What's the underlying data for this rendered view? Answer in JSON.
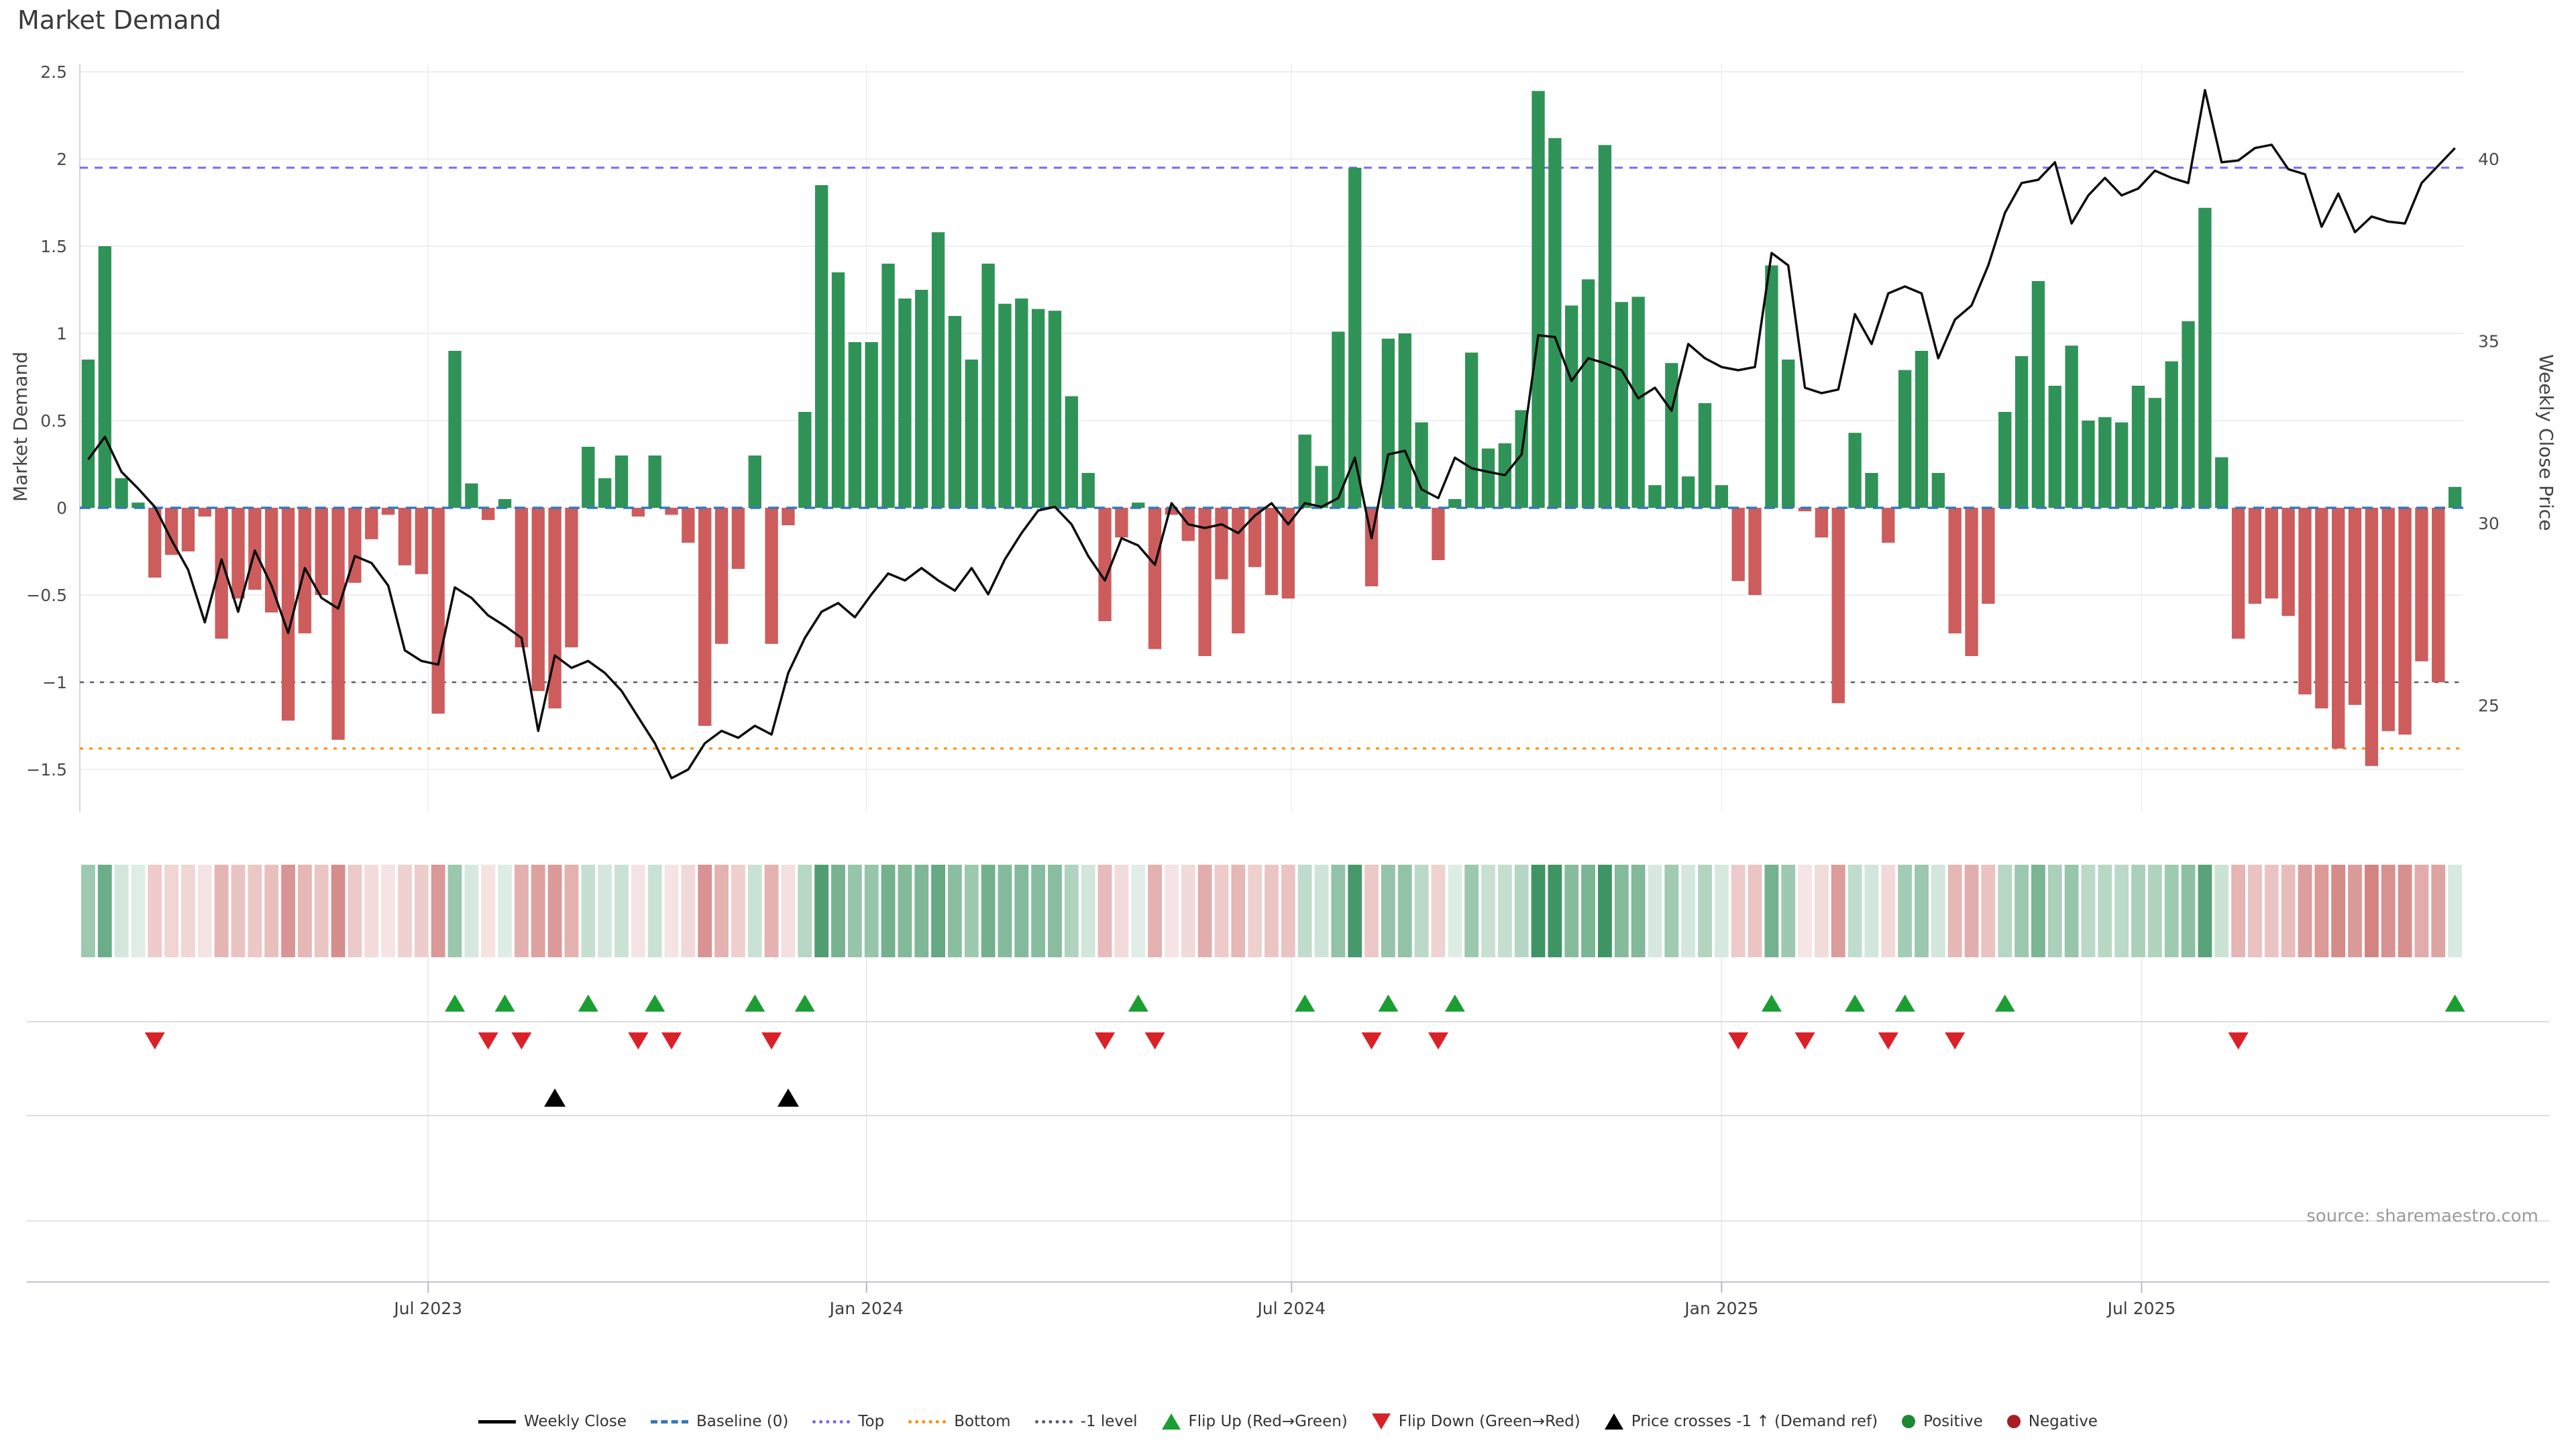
{
  "title": "Market Demand",
  "axes": {
    "left_title": "Market Demand",
    "right_title": "Weekly Close Price",
    "demand_ticks": [
      {
        "v": 2.5,
        "label": "2.5"
      },
      {
        "v": 2.0,
        "label": "2"
      },
      {
        "v": 1.5,
        "label": "1.5"
      },
      {
        "v": 1.0,
        "label": "1"
      },
      {
        "v": 0.5,
        "label": "0.5"
      },
      {
        "v": 0.0,
        "label": "0"
      },
      {
        "v": -0.5,
        "label": "−0.5"
      },
      {
        "v": -1.0,
        "label": "−1"
      },
      {
        "v": -1.5,
        "label": "−1.5"
      }
    ],
    "price_ticks": [
      {
        "v": 40,
        "label": "40"
      },
      {
        "v": 35,
        "label": "35"
      },
      {
        "v": 30,
        "label": "30"
      },
      {
        "v": 25,
        "label": "25"
      }
    ],
    "x_ticks": [
      {
        "week": 20.4,
        "label": "Jul 2023"
      },
      {
        "week": 46.7,
        "label": "Jan 2024"
      },
      {
        "week": 72.2,
        "label": "Jul 2024"
      },
      {
        "week": 98.0,
        "label": "Jan 2025"
      },
      {
        "week": 123.2,
        "label": "Jul 2025"
      }
    ]
  },
  "source_text": "source: sharemaestro.com",
  "chart_data": {
    "type": "bar",
    "title": "Market Demand",
    "xlabel": "",
    "ylabel": "Market Demand",
    "ylabel_right": "Weekly Close Price",
    "ylim_demand": [
      -1.5,
      2.5
    ],
    "ylim_price_ticks": [
      25,
      40
    ],
    "grid": true,
    "legend_position": "bottom-center",
    "categories_note": "weekly bars, Feb 2023 - Oct 2025",
    "series": [
      {
        "name": "Market Demand",
        "type": "bar",
        "values": [
          0.85,
          1.5,
          0.17,
          0.03,
          -0.4,
          -0.27,
          -0.25,
          -0.05,
          -0.75,
          -0.52,
          -0.47,
          -0.6,
          -1.22,
          -0.72,
          -0.5,
          -1.33,
          -0.43,
          -0.18,
          -0.04,
          -0.33,
          -0.38,
          -1.18,
          0.9,
          0.14,
          -0.07,
          0.05,
          -0.8,
          -1.05,
          -1.15,
          -0.8,
          0.35,
          0.17,
          0.3,
          -0.05,
          0.3,
          -0.04,
          -0.2,
          -1.25,
          -0.78,
          -0.35,
          0.3,
          -0.78,
          -0.1,
          0.55,
          1.85,
          1.35,
          0.95,
          0.95,
          1.4,
          1.2,
          1.25,
          1.58,
          1.1,
          0.85,
          1.4,
          1.17,
          1.2,
          1.14,
          1.13,
          0.64,
          0.2,
          -0.65,
          -0.17,
          0.03,
          -0.81,
          -0.04,
          -0.19,
          -0.85,
          -0.41,
          -0.72,
          -0.34,
          -0.5,
          -0.52,
          0.42,
          0.24,
          1.01,
          1.95,
          -0.45,
          0.97,
          1.0,
          0.49,
          -0.3,
          0.05,
          0.89,
          0.34,
          0.37,
          0.56,
          2.39,
          2.12,
          1.16,
          1.31,
          2.08,
          1.18,
          1.21,
          0.13,
          0.83,
          0.18,
          0.6,
          0.13,
          -0.42,
          -0.5,
          1.39,
          0.85,
          -0.02,
          -0.17,
          -1.12,
          0.43,
          0.2,
          -0.2,
          0.79,
          0.9,
          0.2,
          -0.72,
          -0.85,
          -0.55,
          0.55,
          0.87,
          1.3,
          0.7,
          0.93,
          0.5,
          0.52,
          0.49,
          0.7,
          0.63,
          0.84,
          1.07,
          1.72,
          0.29,
          -0.75,
          -0.55,
          -0.52,
          -0.62,
          -1.07,
          -1.15,
          -1.38,
          -1.13,
          -1.48,
          -1.28,
          -1.3,
          -0.88,
          -1.0,
          0.12
        ]
      },
      {
        "name": "Weekly Close",
        "type": "line",
        "values": [
          31.75,
          32.37,
          31.41,
          30.95,
          30.45,
          29.54,
          28.72,
          27.28,
          29.01,
          27.57,
          29.25,
          28.29,
          26.99,
          28.77,
          27.95,
          27.66,
          29.1,
          28.91,
          28.29,
          26.51,
          26.22,
          26.12,
          28.24,
          27.95,
          27.47,
          27.18,
          26.85,
          24.3,
          26.37,
          26.03,
          26.22,
          25.89,
          25.4,
          24.68,
          23.96,
          23.0,
          23.24,
          23.96,
          24.3,
          24.11,
          24.44,
          24.2,
          25.89,
          26.85,
          27.57,
          27.81,
          27.42,
          28.05,
          28.62,
          28.43,
          28.77,
          28.43,
          28.15,
          28.77,
          28.05,
          29.01,
          29.73,
          30.35,
          30.45,
          29.97,
          29.1,
          28.43,
          29.59,
          29.39,
          28.86,
          30.55,
          29.97,
          29.87,
          29.97,
          29.73,
          30.21,
          30.55,
          29.97,
          30.55,
          30.45,
          30.69,
          31.8,
          29.59,
          31.89,
          31.99,
          30.93,
          30.69,
          31.8,
          31.51,
          31.41,
          31.32,
          31.89,
          35.16,
          35.11,
          33.91,
          34.53,
          34.39,
          34.2,
          33.43,
          33.72,
          33.09,
          34.92,
          34.53,
          34.29,
          34.2,
          34.29,
          37.42,
          37.08,
          33.72,
          33.57,
          33.67,
          35.74,
          34.92,
          36.31,
          36.5,
          36.31,
          34.53,
          35.59,
          35.98,
          37.08,
          38.52,
          39.34,
          39.43,
          39.91,
          38.23,
          39.0,
          39.48,
          39.0,
          39.19,
          39.68,
          39.48,
          39.34,
          41.89,
          39.91,
          39.96,
          40.3,
          40.39,
          39.72,
          39.58,
          38.14,
          39.05,
          37.99,
          38.42,
          38.28,
          38.23,
          39.34,
          39.82,
          40.3
        ]
      }
    ],
    "ref_lines": {
      "baseline": {
        "value": 0,
        "color": "#3579b8",
        "label": "Baseline (0)"
      },
      "top": {
        "value": 1.95,
        "color": "#7b68ee",
        "label": "Top"
      },
      "bottom": {
        "value": -1.38,
        "color": "#ff8c00",
        "label": "Bottom"
      },
      "minus1": {
        "value": -1.0,
        "color": "#5a5a6a",
        "label": "-1 level"
      }
    },
    "markers": {
      "flip_up_weeks": [
        22,
        25,
        30,
        34,
        40,
        43,
        63,
        73,
        78,
        82,
        101,
        106,
        109,
        115,
        142
      ],
      "flip_down_weeks": [
        4,
        24,
        26,
        33,
        35,
        41,
        61,
        64,
        77,
        81,
        99,
        103,
        108,
        112,
        129
      ],
      "price_cross_weeks": [
        28,
        42
      ]
    },
    "heatmap": {
      "source": "demand values",
      "positive_base": "#2e8b57",
      "negative_base": "#c0504d"
    }
  },
  "colors": {
    "bar_positive": "#2f9357",
    "bar_negative": "#cd5c5c",
    "price_line": "#0d0d0d",
    "flip_up": "#1b9e31",
    "flip_down": "#da2128",
    "price_cross": "#000000",
    "dot_positive": "#1d8a33",
    "dot_negative": "#a81e22",
    "grid": "#e9e9ef",
    "tick_text": "#4a4a4a"
  },
  "legend": {
    "items": [
      {
        "label": "Weekly Close",
        "swatch": "line-solid",
        "color": "#000000"
      },
      {
        "label": "Baseline (0)",
        "swatch": "line-dashed",
        "color": "#3579b8"
      },
      {
        "label": "Top",
        "swatch": "line-dotted",
        "color": "#7b68ee"
      },
      {
        "label": "Bottom",
        "swatch": "line-dotted",
        "color": "#ff8c00"
      },
      {
        "label": "-1 level",
        "swatch": "line-dotted",
        "color": "#5a5a6a"
      },
      {
        "label": "Flip Up (Red→Green)",
        "swatch": "tri-up",
        "color": "#1b9e31"
      },
      {
        "label": "Flip Down (Green→Red)",
        "swatch": "tri-down",
        "color": "#da2128"
      },
      {
        "label": "Price crosses -1 ↑ (Demand ref)",
        "swatch": "tri-up",
        "color": "#000000"
      },
      {
        "label": "Positive",
        "swatch": "dot",
        "color": "#1d8a33"
      },
      {
        "label": "Negative",
        "swatch": "dot",
        "color": "#a81e22"
      }
    ]
  }
}
